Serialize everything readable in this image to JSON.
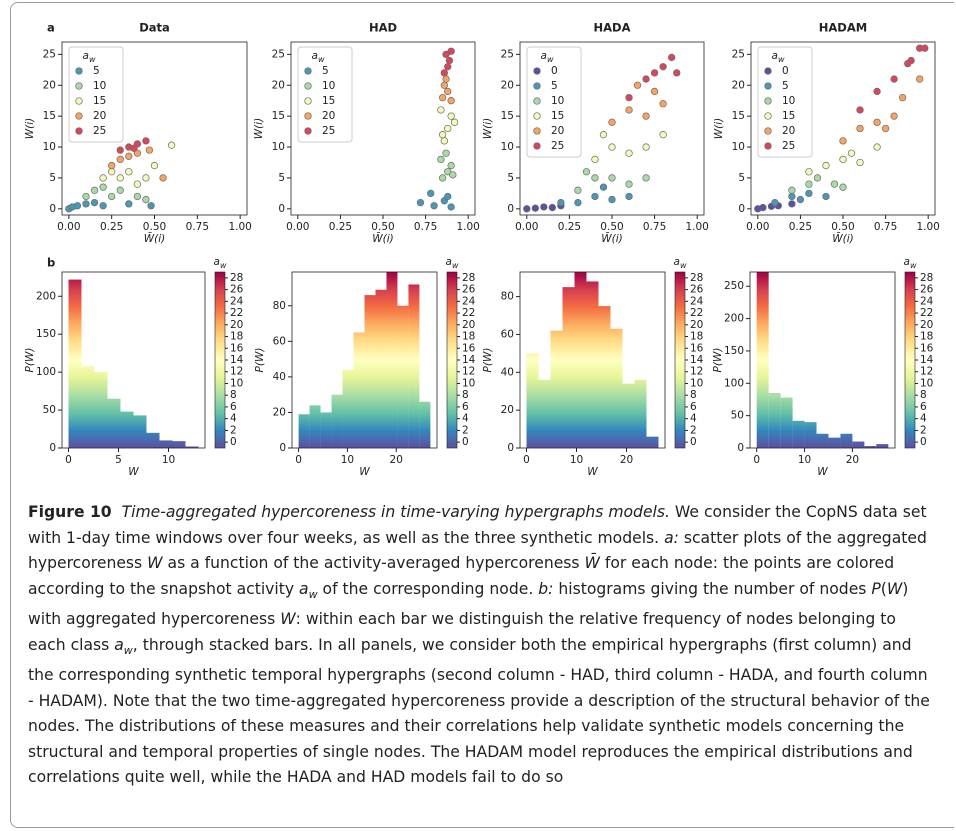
{
  "panel_labels": [
    "a",
    "b"
  ],
  "chart_data": [
    {
      "type": "scatter",
      "title": "Data",
      "xlabel": "W̄(i)",
      "ylabel": "W(i)",
      "xlim": [
        -0.04,
        1.04
      ],
      "xticks": [
        {
          "value": 0,
          "label": "0.00"
        },
        {
          "value": 0.25,
          "label": "0.25"
        },
        {
          "value": 0.5,
          "label": "0.50"
        },
        {
          "value": 0.75,
          "label": "0.75"
        },
        {
          "value": 1,
          "label": "1.00"
        }
      ],
      "ylim": [
        -1,
        27
      ],
      "yticks": [
        0,
        5,
        10,
        15,
        20,
        25
      ],
      "legend_title": [
        "a",
        "w"
      ],
      "series": [
        {
          "name": "5",
          "color": "#4a98b5",
          "x": [
            0,
            0.02,
            0.05,
            0.1,
            0.15,
            0.2,
            0.35,
            0.48
          ],
          "values": [
            0,
            0.3,
            0.5,
            0.8,
            1,
            0.5,
            0.8,
            0.5
          ]
        },
        {
          "name": "10",
          "color": "#a8dba4",
          "x": [
            0.1,
            0.15,
            0.2,
            0.25,
            0.3,
            0.4,
            0.45
          ],
          "values": [
            2,
            3,
            3.5,
            2,
            3,
            2,
            1.5
          ]
        },
        {
          "name": "15",
          "color": "#f5f9b8",
          "x": [
            0.2,
            0.25,
            0.3,
            0.35,
            0.4,
            0.45,
            0.6,
            0.5
          ],
          "values": [
            5,
            6,
            5,
            6,
            4,
            5,
            10.3,
            7
          ]
        },
        {
          "name": "20",
          "color": "#f8a35f",
          "x": [
            0.25,
            0.3,
            0.35,
            0.4,
            0.47,
            0.55
          ],
          "values": [
            7,
            8,
            8.5,
            9,
            9.5,
            5
          ]
        },
        {
          "name": "25",
          "color": "#d9455a",
          "x": [
            0.3,
            0.35,
            0.4,
            0.45,
            0.38
          ],
          "values": [
            9.5,
            10,
            10.5,
            11,
            9.8
          ]
        }
      ]
    },
    {
      "type": "scatter",
      "title": "HAD",
      "xlabel": "W̄(i)",
      "ylabel": "W(i)",
      "xlim": [
        -0.04,
        1.04
      ],
      "xticks": [
        {
          "value": 0,
          "label": "0.00"
        },
        {
          "value": 0.25,
          "label": "0.25"
        },
        {
          "value": 0.5,
          "label": "0.50"
        },
        {
          "value": 0.75,
          "label": "0.75"
        },
        {
          "value": 1,
          "label": "1.00"
        }
      ],
      "ylim": [
        -1,
        27
      ],
      "yticks": [
        0,
        5,
        10,
        15,
        20,
        25
      ],
      "legend_title": [
        "a",
        "w"
      ],
      "series": [
        {
          "name": "5",
          "color": "#4a98b5",
          "x": [
            0.72,
            0.8,
            0.86,
            0.9,
            0.78,
            0.88
          ],
          "values": [
            1,
            0.5,
            1.3,
            0.3,
            2.5,
            2
          ]
        },
        {
          "name": "10",
          "color": "#a8dba4",
          "x": [
            0.85,
            0.88,
            0.9,
            0.84,
            0.87,
            0.91
          ],
          "values": [
            5,
            6,
            7,
            8,
            9,
            5.5
          ]
        },
        {
          "name": "15",
          "color": "#f5f9b8",
          "x": [
            0.86,
            0.88,
            0.9,
            0.85,
            0.92,
            0.84
          ],
          "values": [
            11,
            13,
            15,
            12,
            14,
            16
          ]
        },
        {
          "name": "20",
          "color": "#f8a35f",
          "x": [
            0.85,
            0.88,
            0.86,
            0.9,
            0.87
          ],
          "values": [
            18,
            19,
            20,
            17.5,
            21
          ]
        },
        {
          "name": "25",
          "color": "#d9455a",
          "x": [
            0.86,
            0.88,
            0.89,
            0.87,
            0.9
          ],
          "values": [
            22,
            23,
            24,
            25,
            25.5
          ]
        }
      ]
    },
    {
      "type": "scatter",
      "title": "HADA",
      "xlabel": "W̄(i)",
      "ylabel": "W(i)",
      "xlim": [
        -0.04,
        1.04
      ],
      "xticks": [
        {
          "value": 0,
          "label": "0.00"
        },
        {
          "value": 0.25,
          "label": "0.25"
        },
        {
          "value": 0.5,
          "label": "0.50"
        },
        {
          "value": 0.75,
          "label": "0.75"
        },
        {
          "value": 1,
          "label": "1.00"
        }
      ],
      "ylim": [
        -1,
        27
      ],
      "yticks": [
        0,
        5,
        10,
        15,
        20,
        25
      ],
      "legend_title": [
        "a",
        "w"
      ],
      "series": [
        {
          "name": "0",
          "color": "#5e4fa2",
          "x": [
            0,
            0.05,
            0.1,
            0.2,
            0.15
          ],
          "values": [
            0,
            0.1,
            0.3,
            0.5,
            0.2
          ]
        },
        {
          "name": "5",
          "color": "#4a98b5",
          "x": [
            0.2,
            0.3,
            0.4,
            0.5,
            0.6,
            0.45
          ],
          "values": [
            1,
            1,
            2,
            1.5,
            2,
            3.5
          ]
        },
        {
          "name": "10",
          "color": "#a8dba4",
          "x": [
            0.3,
            0.4,
            0.5,
            0.6,
            0.7,
            0.35
          ],
          "values": [
            3,
            5,
            5,
            4,
            5,
            6
          ]
        },
        {
          "name": "15",
          "color": "#f5f9b8",
          "x": [
            0.4,
            0.5,
            0.6,
            0.7,
            0.8,
            0.45
          ],
          "values": [
            8,
            10,
            9,
            10,
            12,
            12
          ]
        },
        {
          "name": "20",
          "color": "#f8a35f",
          "x": [
            0.5,
            0.6,
            0.7,
            0.8,
            0.75,
            0.65
          ],
          "values": [
            14,
            16,
            15,
            17,
            19,
            20
          ]
        },
        {
          "name": "25",
          "color": "#d9455a",
          "x": [
            0.7,
            0.75,
            0.8,
            0.85,
            0.88,
            0.6
          ],
          "values": [
            21,
            22,
            23,
            24.5,
            22,
            18
          ]
        }
      ]
    },
    {
      "type": "scatter",
      "title": "HADAM",
      "xlabel": "W̄(i)",
      "ylabel": "W(i)",
      "xlim": [
        -0.04,
        1.04
      ],
      "xticks": [
        {
          "value": 0,
          "label": "0.00"
        },
        {
          "value": 0.25,
          "label": "0.25"
        },
        {
          "value": 0.5,
          "label": "0.50"
        },
        {
          "value": 0.75,
          "label": "0.75"
        },
        {
          "value": 1,
          "label": "1.00"
        }
      ],
      "ylim": [
        -1,
        27
      ],
      "yticks": [
        0,
        5,
        10,
        15,
        20,
        25
      ],
      "legend_title": [
        "a",
        "w"
      ],
      "series": [
        {
          "name": "0",
          "color": "#5e4fa2",
          "x": [
            0,
            0.03,
            0.08,
            0.12,
            0.2
          ],
          "values": [
            0,
            0.2,
            0.4,
            0.5,
            0.8
          ]
        },
        {
          "name": "5",
          "color": "#4a98b5",
          "x": [
            0.1,
            0.2,
            0.25,
            0.3,
            0.4
          ],
          "values": [
            1,
            2,
            1.5,
            2.5,
            2
          ]
        },
        {
          "name": "10",
          "color": "#a8dba4",
          "x": [
            0.2,
            0.3,
            0.35,
            0.45,
            0.5
          ],
          "values": [
            3,
            4,
            5,
            4,
            3.5
          ]
        },
        {
          "name": "15",
          "color": "#f5f9b8",
          "x": [
            0.3,
            0.4,
            0.5,
            0.55,
            0.6,
            0.7
          ],
          "values": [
            6,
            7,
            8,
            9,
            7.5,
            10
          ]
        },
        {
          "name": "20",
          "color": "#f8a35f",
          "x": [
            0.5,
            0.6,
            0.7,
            0.8,
            0.85,
            0.95,
            0.75
          ],
          "values": [
            11,
            13,
            14,
            15,
            18,
            21,
            13
          ]
        },
        {
          "name": "25",
          "color": "#d9455a",
          "x": [
            0.6,
            0.7,
            0.8,
            0.9,
            0.95,
            0.98,
            0.88
          ],
          "values": [
            16,
            19,
            21,
            24,
            26,
            26,
            23.5
          ]
        }
      ]
    },
    {
      "type": "histogram",
      "xlabel": "W",
      "ylabel": "P(W)",
      "bins": [
        0,
        1.3,
        2.6,
        3.9,
        5.2,
        6.5,
        7.8,
        9.1,
        10.4,
        11.7,
        13
      ],
      "values": [
        222,
        108,
        100,
        65,
        48,
        43,
        20,
        10,
        9,
        2
      ],
      "xlim": [
        -0.65,
        13.65
      ],
      "xticks": [
        0,
        5,
        10
      ],
      "ylim": [
        0,
        232
      ],
      "yticks": [
        0,
        50,
        100,
        150,
        200
      ],
      "colorbar": {
        "title": [
          "a",
          "w"
        ],
        "lim": [
          -1,
          29
        ],
        "ticks": [
          0,
          2,
          4,
          6,
          8,
          10,
          12,
          14,
          16,
          18,
          20,
          22,
          24,
          26,
          28
        ]
      }
    },
    {
      "type": "histogram",
      "xlabel": "W",
      "ylabel": "P(W)",
      "bins": [
        0,
        2.25,
        4.5,
        6.75,
        9,
        11.25,
        13.5,
        15.75,
        18,
        20.25,
        22.5,
        24.75,
        27
      ],
      "values": [
        19,
        24,
        20,
        30,
        44,
        65,
        86,
        89,
        99,
        80,
        92,
        26
      ],
      "xlim": [
        -1.35,
        28.35
      ],
      "xticks": [
        0,
        10,
        20
      ],
      "ylim": [
        0,
        99
      ],
      "yticks": [
        0,
        20,
        40,
        60,
        80
      ],
      "colorbar": {
        "title": [
          "a",
          "w"
        ],
        "lim": [
          -1,
          29
        ],
        "ticks": [
          0,
          2,
          4,
          6,
          8,
          10,
          12,
          14,
          16,
          18,
          20,
          22,
          24,
          26,
          28
        ]
      }
    },
    {
      "type": "histogram",
      "xlabel": "W",
      "ylabel": "P(W)",
      "bins": [
        0,
        2.4,
        4.8,
        7.2,
        9.6,
        12,
        14.4,
        16.8,
        19.2,
        21.6,
        24,
        26.4
      ],
      "values": [
        50,
        36,
        62,
        85,
        93,
        88,
        75,
        63,
        34,
        36,
        6
      ],
      "xlim": [
        -1.3,
        27.7
      ],
      "xticks": [
        0,
        10,
        20
      ],
      "ylim": [
        0,
        93
      ],
      "yticks": [
        0,
        20,
        40,
        60,
        80
      ],
      "colorbar": {
        "title": [
          "a",
          "w"
        ],
        "lim": [
          -1,
          29
        ],
        "ticks": [
          0,
          2,
          4,
          6,
          8,
          10,
          12,
          14,
          16,
          18,
          20,
          22,
          24,
          26,
          28
        ]
      }
    },
    {
      "type": "histogram",
      "xlabel": "W",
      "ylabel": "P(W)",
      "bins": [
        0,
        2.5,
        5,
        7.5,
        10,
        12.5,
        15,
        17.5,
        20,
        22.5,
        25,
        27.5
      ],
      "values": [
        272,
        85,
        78,
        42,
        40,
        22,
        16,
        22,
        10,
        3,
        6
      ],
      "xlim": [
        -1.4,
        28.9
      ],
      "xticks": [
        0,
        10,
        20
      ],
      "ylim": [
        0,
        272
      ],
      "yticks": [
        0,
        50,
        100,
        150,
        200,
        250
      ],
      "colorbar": {
        "title": [
          "a",
          "w"
        ],
        "lim": [
          -1,
          29
        ],
        "ticks": [
          0,
          2,
          4,
          6,
          8,
          10,
          12,
          14,
          16,
          18,
          20,
          22,
          24,
          26,
          28
        ]
      }
    }
  ],
  "caption": {
    "label": "Figure 10",
    "title": "Time-aggregated hypercoreness in time-varying hypergraphs models.",
    "body": [
      {
        "text": " We consider the CopNS data set with 1-day time windows over four weeks, as well as the three synthetic models. "
      },
      {
        "text": "a:",
        "italic": true
      },
      {
        "text": " scatter plots of the aggregated hypercoreness "
      },
      {
        "text": "W",
        "italic": true
      },
      {
        "text": " as a function of the activity-averaged hypercoreness "
      },
      {
        "text": "W̄",
        "italic": true
      },
      {
        "text": " for each node: the points are colored according to the snapshot activity "
      },
      {
        "text": "a",
        "italic": true
      },
      {
        "text": "w",
        "sub": true
      },
      {
        "text": " of the corresponding node. "
      },
      {
        "text": "b:",
        "italic": true
      },
      {
        "text": " histograms giving the number of nodes "
      },
      {
        "text": "P",
        "italic": true
      },
      {
        "text": "("
      },
      {
        "text": "W",
        "italic": true
      },
      {
        "text": ") with aggregated hypercoreness "
      },
      {
        "text": "W",
        "italic": true
      },
      {
        "text": ": within each bar we distinguish the relative frequency of nodes belonging to each class "
      },
      {
        "text": "a",
        "italic": true
      },
      {
        "text": "w",
        "sub": true
      },
      {
        "text": ", through stacked bars. In all panels, we consider both the empirical hypergraphs (first column) and the corresponding synthetic temporal hypergraphs (second column - HAD, third column - HADA, and fourth column - HADAM). Note that the two time-aggregated hypercoreness provide a description of the structural behavior of the nodes. The distributions of these measures and their correlations help validate synthetic models concerning the structural and temporal properties of single nodes. The HADAM model reproduces the empirical distributions and correlations quite well, while the HADA and HAD models fail to do so"
      }
    ]
  }
}
